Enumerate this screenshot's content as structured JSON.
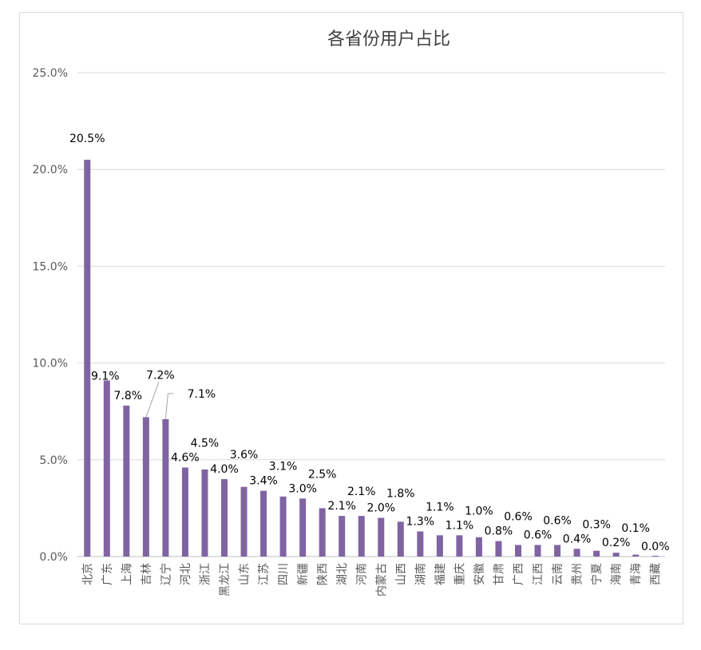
{
  "chart_data": {
    "type": "bar",
    "title": "各省份用户占比",
    "categories": [
      "北京",
      "广东",
      "上海",
      "吉林",
      "辽宁",
      "河北",
      "浙江",
      "黑龙江",
      "山东",
      "江苏",
      "四川",
      "新疆",
      "陕西",
      "湖北",
      "河南",
      "内蒙古",
      "山西",
      "湖南",
      "福建",
      "重庆",
      "安徽",
      "甘肃",
      "广西",
      "江西",
      "云南",
      "贵州",
      "宁夏",
      "海南",
      "青海",
      "西藏"
    ],
    "values": [
      20.5,
      9.1,
      7.8,
      7.2,
      7.1,
      4.6,
      4.5,
      4.0,
      3.6,
      3.4,
      3.1,
      3.0,
      2.5,
      2.1,
      2.1,
      2.0,
      1.8,
      1.3,
      1.1,
      1.1,
      1.0,
      0.8,
      0.6,
      0.6,
      0.6,
      0.4,
      0.3,
      0.2,
      0.1,
      0.0
    ],
    "data_labels": [
      "20.5%",
      "9.1%",
      "7.8%",
      "7.2%",
      "7.1%",
      "4.6%",
      "4.5%",
      "4.0%",
      "3.6%",
      "3.4%",
      "3.1%",
      "3.0%",
      "2.5%",
      "2.1%",
      "2.1%",
      "2.0%",
      "1.8%",
      "1.3%",
      "1.1%",
      "1.1%",
      "1.0%",
      "0.8%",
      "0.6%",
      "0.6%",
      "0.6%",
      "0.4%",
      "0.3%",
      "0.2%",
      "0.1%",
      "0.0%"
    ],
    "yticks": [
      "0.0%",
      "5.0%",
      "10.0%",
      "15.0%",
      "20.0%",
      "25.0%"
    ],
    "ylim": [
      0,
      25
    ],
    "grid": true,
    "legend": "none",
    "bar_color": "#8064a2"
  }
}
